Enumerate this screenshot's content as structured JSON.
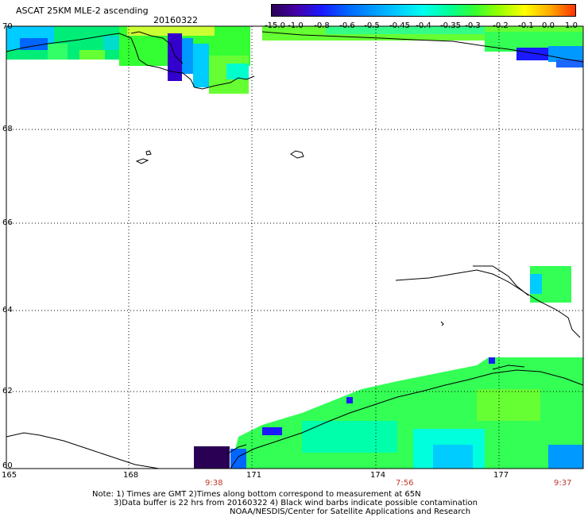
{
  "header": {
    "product": "ASCAT 25KM MLE-2 ascending",
    "date": "20160322"
  },
  "colorbar": {
    "labels": [
      "-15.0",
      "-1.0",
      "-0.8",
      "-0.6",
      "-0.5",
      "-0.45",
      "-0.4",
      "-0.35",
      "-0.3",
      "-0.2",
      "-0.1",
      "0.0",
      "1.0"
    ],
    "colors": [
      "#2a0055",
      "#4400aa",
      "#1a1aff",
      "#0066ff",
      "#0099ff",
      "#00ccff",
      "#00ffee",
      "#00ff99",
      "#33ff33",
      "#99ff00",
      "#ffff00",
      "#ffaa00",
      "#ff3300"
    ]
  },
  "axes": {
    "lat_labels": [
      "70",
      "68",
      "66",
      "64",
      "62",
      "60"
    ],
    "lon_labels": [
      "165",
      "168",
      "171",
      "174",
      "177"
    ]
  },
  "times": [
    "9:38",
    "7:56",
    "9:37"
  ],
  "notes": {
    "line1": "Note: 1) Times are GMT 2)Times along bottom correspond to measurement at 65N",
    "line2": "3)Data buffer is 22 hrs from 20160322 4) Black wind barbs indicate possible contamination",
    "line3": "NOAA/NESDIS/Center for Satellite Applications and Research"
  }
}
